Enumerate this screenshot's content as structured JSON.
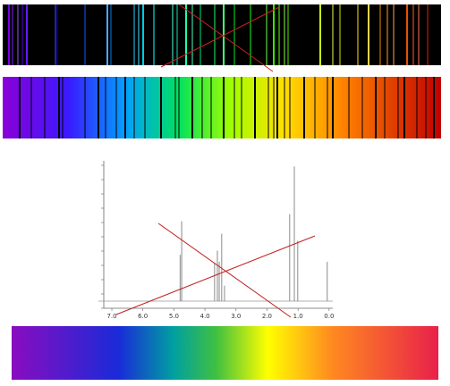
{
  "chart_data": {
    "type": "stem",
    "x": [
      4.8,
      4.75,
      3.69,
      3.6,
      3.54,
      3.46,
      3.37,
      1.27,
      1.12,
      1.01,
      0.06
    ],
    "values": [
      33,
      57,
      27,
      36,
      28,
      48,
      11,
      62,
      96,
      43,
      28
    ],
    "color": "#8a8a8a",
    "xlim": [
      7.26,
      -0.12
    ],
    "xticks": [
      {
        "value": 7,
        "label": "7.0"
      },
      {
        "value": 6,
        "label": "6.0"
      },
      {
        "value": 5,
        "label": "5.0"
      },
      {
        "value": 4,
        "label": "4.0"
      },
      {
        "value": 3,
        "label": "3.0"
      },
      {
        "value": 2,
        "label": "2.0"
      },
      {
        "value": 1,
        "label": "1.0"
      },
      {
        "value": 0,
        "label": "0.0"
      }
    ],
    "ylim": [
      0,
      100
    ]
  }
}
